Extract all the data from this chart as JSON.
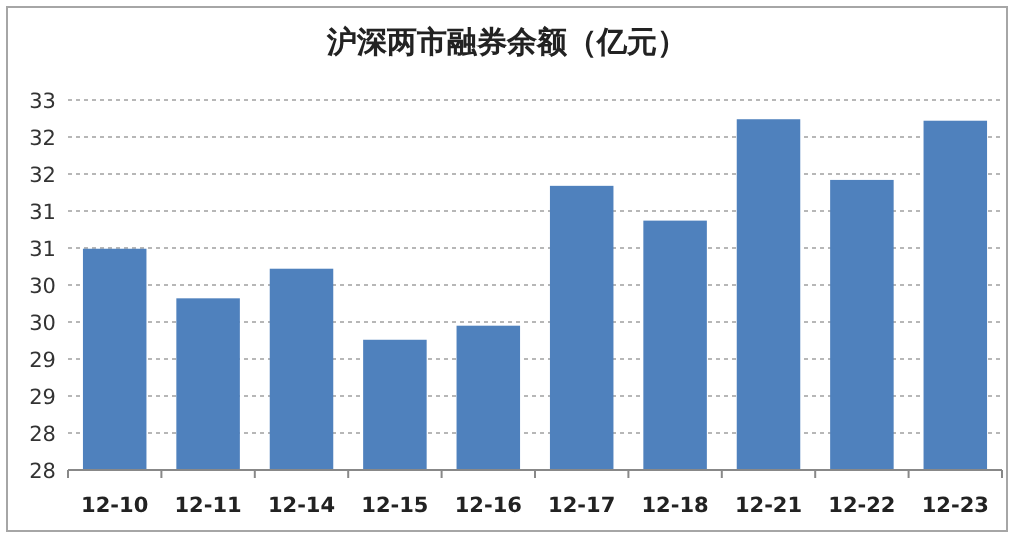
{
  "chart_data": {
    "type": "bar",
    "title": "沪深两市融券余额（亿元）",
    "categories": [
      "12-10",
      "12-11",
      "12-14",
      "12-15",
      "12-16",
      "12-17",
      "12-18",
      "12-21",
      "12-22",
      "12-23"
    ],
    "values": [
      30.99,
      30.32,
      30.72,
      29.76,
      29.95,
      31.84,
      31.37,
      32.74,
      31.92,
      32.72
    ],
    "color": "#4f81bd",
    "ylim": [
      28,
      33
    ],
    "yticks": [
      {
        "value": 28,
        "label": "28"
      },
      {
        "value": 28.5,
        "label": "28"
      },
      {
        "value": 29,
        "label": "29"
      },
      {
        "value": 29.5,
        "label": "29"
      },
      {
        "value": 30,
        "label": "30"
      },
      {
        "value": 30.5,
        "label": "30"
      },
      {
        "value": 31,
        "label": "31"
      },
      {
        "value": 31.5,
        "label": "31"
      },
      {
        "value": 32,
        "label": "32"
      },
      {
        "value": 32.5,
        "label": "32"
      },
      {
        "value": 33,
        "label": "33"
      }
    ],
    "grid": "y"
  }
}
